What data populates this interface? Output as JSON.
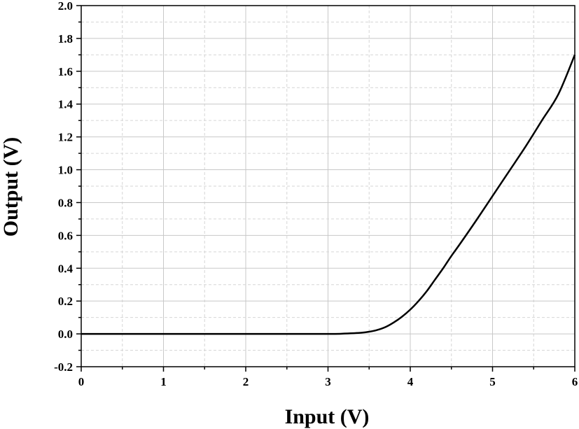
{
  "chart_data": {
    "type": "line",
    "xlabel": "Input (V)",
    "ylabel": "Output (V)",
    "xlim": [
      0,
      6
    ],
    "ylim": [
      -0.2,
      2.0
    ],
    "x_ticks": [
      "0",
      "1",
      "2",
      "3",
      "4",
      "5",
      "6"
    ],
    "y_ticks": [
      "-0.2",
      "0.0",
      "0.2",
      "0.4",
      "0.6",
      "0.8",
      "1.0",
      "1.2",
      "1.4",
      "1.6",
      "1.8",
      "2.0"
    ],
    "grid": true,
    "series": [
      {
        "color": "#000000",
        "x": [
          0,
          1,
          2,
          3,
          3.2,
          3.4,
          3.5,
          3.6,
          3.7,
          3.8,
          3.9,
          4.0,
          4.1,
          4.2,
          4.3,
          4.4,
          4.5,
          4.6,
          4.8,
          5.0,
          5.2,
          5.4,
          5.6,
          5.8,
          6.0
        ],
        "y": [
          0,
          0,
          0,
          0,
          0.002,
          0.007,
          0.013,
          0.024,
          0.042,
          0.07,
          0.105,
          0.148,
          0.2,
          0.26,
          0.33,
          0.4,
          0.475,
          0.545,
          0.69,
          0.84,
          0.99,
          1.14,
          1.3,
          1.46,
          1.7
        ]
      }
    ]
  }
}
